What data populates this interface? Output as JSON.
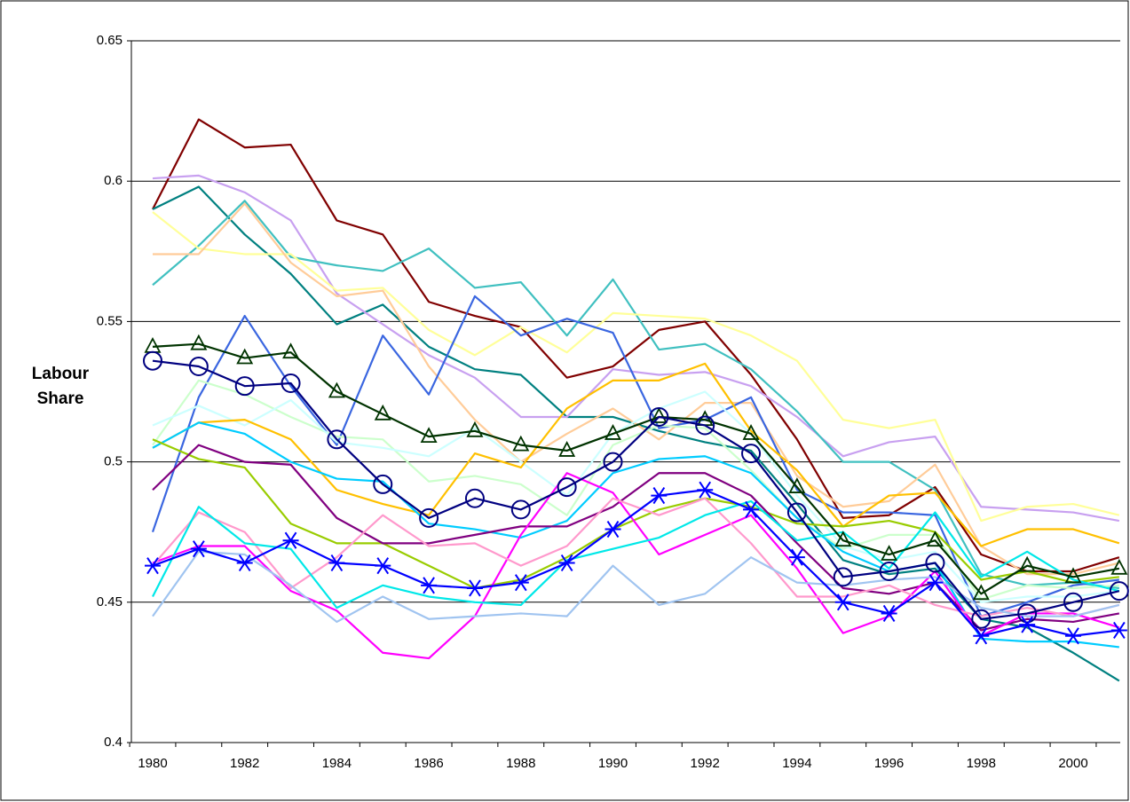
{
  "chart_data": {
    "type": "line",
    "ylabel": "Labour Share",
    "categories": [
      1980,
      null,
      1982,
      null,
      1984,
      null,
      1986,
      null,
      1988,
      null,
      1990,
      null,
      1992,
      null,
      1994,
      null,
      1996,
      null,
      1998,
      null,
      2000,
      null
    ],
    "ylim": [
      0.4,
      0.65
    ],
    "yticks": [
      0.4,
      0.45,
      0.5,
      0.55,
      0.6,
      0.65
    ],
    "grid": true,
    "series": [
      {
        "color": "#800000",
        "values": [
          0.59,
          0.622,
          0.612,
          0.613,
          0.586,
          0.581,
          0.557,
          0.552,
          0.548,
          0.53,
          0.534,
          0.547,
          0.55,
          0.531,
          0.508,
          0.48,
          0.481,
          0.491,
          0.467,
          0.461,
          0.461,
          0.466
        ]
      },
      {
        "color": "#008080",
        "values": [
          0.59,
          0.598,
          0.581,
          0.567,
          0.549,
          0.556,
          0.541,
          0.533,
          0.531,
          0.516,
          0.516,
          0.511,
          0.507,
          0.504,
          0.485,
          0.465,
          0.46,
          0.462,
          0.444,
          0.441,
          0.432,
          0.422
        ]
      },
      {
        "color": "#c8a0f0",
        "values": [
          0.601,
          0.602,
          0.596,
          0.586,
          0.56,
          0.549,
          0.538,
          0.53,
          0.516,
          0.516,
          0.533,
          0.531,
          0.532,
          0.527,
          0.516,
          0.502,
          0.507,
          0.509,
          0.484,
          0.483,
          0.482,
          0.479
        ]
      },
      {
        "color": "#40c0c0",
        "values": [
          0.563,
          0.577,
          0.593,
          0.573,
          0.57,
          0.568,
          0.576,
          0.562,
          0.564,
          0.545,
          0.565,
          0.54,
          0.542,
          0.533,
          0.518,
          0.5,
          0.5,
          0.49,
          0.46,
          0.456,
          0.457,
          0.455
        ]
      },
      {
        "color": "#ffff99",
        "values": [
          0.589,
          0.576,
          0.574,
          0.574,
          0.561,
          0.562,
          0.547,
          0.538,
          0.548,
          0.539,
          0.553,
          0.552,
          0.551,
          0.545,
          0.536,
          0.515,
          0.512,
          0.515,
          0.479,
          0.484,
          0.485,
          0.481
        ]
      },
      {
        "color": "#ffcc99",
        "values": [
          0.574,
          0.574,
          0.592,
          0.571,
          0.559,
          0.561,
          0.534,
          0.515,
          0.5,
          0.51,
          0.519,
          0.508,
          0.521,
          0.521,
          0.495,
          0.484,
          0.486,
          0.499,
          0.47,
          0.46,
          0.46,
          0.464
        ]
      },
      {
        "color": "#3a66e0",
        "values": [
          0.475,
          0.523,
          0.552,
          0.527,
          0.506,
          0.545,
          0.524,
          0.559,
          0.545,
          0.551,
          0.546,
          0.512,
          0.515,
          0.523,
          0.49,
          0.482,
          0.482,
          0.481,
          0.445,
          0.45,
          0.456,
          0.458
        ]
      },
      {
        "color": "#ccffcc",
        "values": [
          0.506,
          0.529,
          0.524,
          0.516,
          0.509,
          0.508,
          0.493,
          0.495,
          0.492,
          0.481,
          0.506,
          0.513,
          0.512,
          0.497,
          0.48,
          0.469,
          0.474,
          0.474,
          0.451,
          0.456,
          0.455,
          0.456
        ]
      },
      {
        "color": "#ccffff",
        "values": [
          0.513,
          0.52,
          0.513,
          0.522,
          0.507,
          0.505,
          0.502,
          0.512,
          0.5,
          0.488,
          0.51,
          0.519,
          0.525,
          0.51,
          0.488,
          0.47,
          0.465,
          0.468,
          0.45,
          0.452,
          0.452,
          0.454
        ]
      },
      {
        "color": "#ffc000",
        "values": [
          0.505,
          0.514,
          0.515,
          0.508,
          0.49,
          0.485,
          0.481,
          0.503,
          0.498,
          0.519,
          0.529,
          0.529,
          0.535,
          0.511,
          0.497,
          0.477,
          0.488,
          0.489,
          0.47,
          0.476,
          0.476,
          0.471
        ]
      },
      {
        "color": "#00ccff",
        "values": [
          0.505,
          0.514,
          0.51,
          0.5,
          0.494,
          0.493,
          0.478,
          0.476,
          0.473,
          0.479,
          0.496,
          0.501,
          0.502,
          0.496,
          0.48,
          0.468,
          0.461,
          0.464,
          0.437,
          0.436,
          0.436,
          0.434
        ]
      },
      {
        "color": "#99cc00",
        "values": [
          0.508,
          0.501,
          0.498,
          0.478,
          0.471,
          0.471,
          0.463,
          0.455,
          0.458,
          0.466,
          0.476,
          0.483,
          0.487,
          0.484,
          0.478,
          0.477,
          0.479,
          0.475,
          0.458,
          0.461,
          0.457,
          0.459
        ]
      },
      {
        "color": "#800080",
        "values": [
          0.49,
          0.506,
          0.5,
          0.499,
          0.48,
          0.471,
          0.471,
          0.474,
          0.477,
          0.477,
          0.484,
          0.496,
          0.496,
          0.488,
          0.471,
          0.455,
          0.453,
          0.457,
          0.44,
          0.444,
          0.443,
          0.446
        ]
      },
      {
        "color": "#ff00ff",
        "values": [
          0.464,
          0.47,
          0.47,
          0.454,
          0.447,
          0.432,
          0.43,
          0.445,
          0.474,
          0.496,
          0.489,
          0.467,
          0.474,
          0.481,
          0.462,
          0.439,
          0.445,
          0.461,
          0.438,
          0.446,
          0.446,
          0.441
        ]
      },
      {
        "color": "#ff99cc",
        "values": [
          0.463,
          0.482,
          0.475,
          0.455,
          0.466,
          0.481,
          0.47,
          0.471,
          0.463,
          0.47,
          0.487,
          0.481,
          0.487,
          0.471,
          0.452,
          0.452,
          0.456,
          0.449,
          0.445,
          0.448,
          0.445,
          0.449
        ]
      },
      {
        "color": "#00e8e8",
        "values": [
          0.452,
          0.484,
          0.471,
          0.469,
          0.448,
          0.456,
          0.452,
          0.45,
          0.449,
          0.465,
          0.469,
          0.473,
          0.481,
          0.486,
          0.472,
          0.475,
          0.462,
          0.482,
          0.459,
          0.468,
          0.458,
          0.454
        ]
      },
      {
        "color": "#a0c4f0",
        "values": [
          0.445,
          0.468,
          0.467,
          0.456,
          0.443,
          0.452,
          0.444,
          0.445,
          0.446,
          0.445,
          0.463,
          0.449,
          0.453,
          0.466,
          0.457,
          0.456,
          0.458,
          0.459,
          0.448,
          0.445,
          0.445,
          0.449
        ]
      },
      {
        "color": "#003300",
        "marker": "triangle",
        "values": [
          0.541,
          0.542,
          0.537,
          0.539,
          0.525,
          0.517,
          0.509,
          0.511,
          0.506,
          0.504,
          0.51,
          0.516,
          0.515,
          0.51,
          0.491,
          0.472,
          0.467,
          0.472,
          0.453,
          0.463,
          0.459,
          0.462
        ]
      },
      {
        "color": "#000080",
        "marker": "circle",
        "values": [
          0.536,
          0.534,
          0.527,
          0.528,
          0.508,
          0.492,
          0.48,
          0.487,
          0.483,
          0.491,
          0.5,
          0.516,
          0.513,
          0.503,
          0.482,
          0.459,
          0.461,
          0.464,
          0.444,
          0.446,
          0.45,
          0.454
        ]
      },
      {
        "color": "#0000ff",
        "marker": "star",
        "values": [
          0.463,
          0.469,
          0.464,
          0.472,
          0.464,
          0.463,
          0.456,
          0.455,
          0.457,
          0.464,
          0.476,
          0.488,
          0.49,
          0.483,
          0.466,
          0.45,
          0.446,
          0.457,
          0.438,
          0.442,
          0.438,
          0.44
        ]
      }
    ]
  }
}
